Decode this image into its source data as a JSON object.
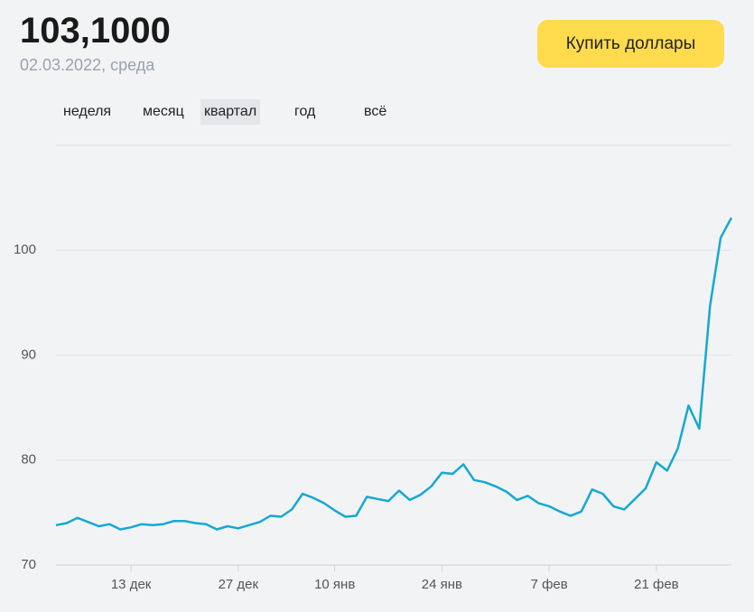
{
  "header": {
    "rate": "103,1000",
    "date": "02.03.2022, среда",
    "button": "Купить доллары",
    "periods": [
      "неделя",
      "месяц",
      "квартал",
      "год",
      "всё"
    ],
    "selected_period": 2
  },
  "chart_data": {
    "type": "line",
    "categories": [
      null,
      null,
      null,
      null,
      null,
      null,
      null,
      "13 дек",
      null,
      null,
      null,
      null,
      null,
      null,
      null,
      null,
      null,
      "27 дек",
      null,
      null,
      null,
      null,
      null,
      null,
      null,
      null,
      "10 янв",
      null,
      null,
      null,
      null,
      null,
      null,
      null,
      null,
      null,
      "24 янв",
      null,
      null,
      null,
      null,
      null,
      null,
      null,
      null,
      null,
      "7 фев",
      null,
      null,
      null,
      null,
      null,
      null,
      null,
      null,
      null,
      "21 фев",
      null,
      null,
      null,
      null,
      null,
      null,
      null
    ],
    "series": [
      {
        "name": "USD",
        "color": "#15a9d2",
        "values": [
          73.8,
          74.0,
          74.5,
          74.1,
          73.7,
          73.9,
          73.4,
          73.6,
          73.9,
          73.8,
          73.9,
          74.2,
          74.2,
          74.0,
          73.9,
          73.4,
          73.7,
          73.5,
          73.8,
          74.1,
          74.7,
          74.6,
          75.3,
          76.8,
          76.4,
          75.9,
          75.2,
          74.6,
          74.7,
          76.5,
          76.3,
          76.1,
          77.1,
          76.2,
          76.7,
          77.5,
          78.8,
          78.7,
          79.6,
          78.1,
          77.9,
          77.5,
          77.0,
          76.2,
          76.6,
          75.9,
          75.6,
          75.1,
          74.7,
          75.1,
          77.2,
          76.8,
          75.6,
          75.3,
          76.3,
          77.3,
          79.8,
          79.0,
          81.1,
          85.2,
          83.0,
          94.7,
          101.2,
          103.1
        ]
      }
    ],
    "ylim": [
      70,
      110
    ],
    "yticks": [
      70,
      80,
      90,
      100
    ],
    "grid": true
  }
}
